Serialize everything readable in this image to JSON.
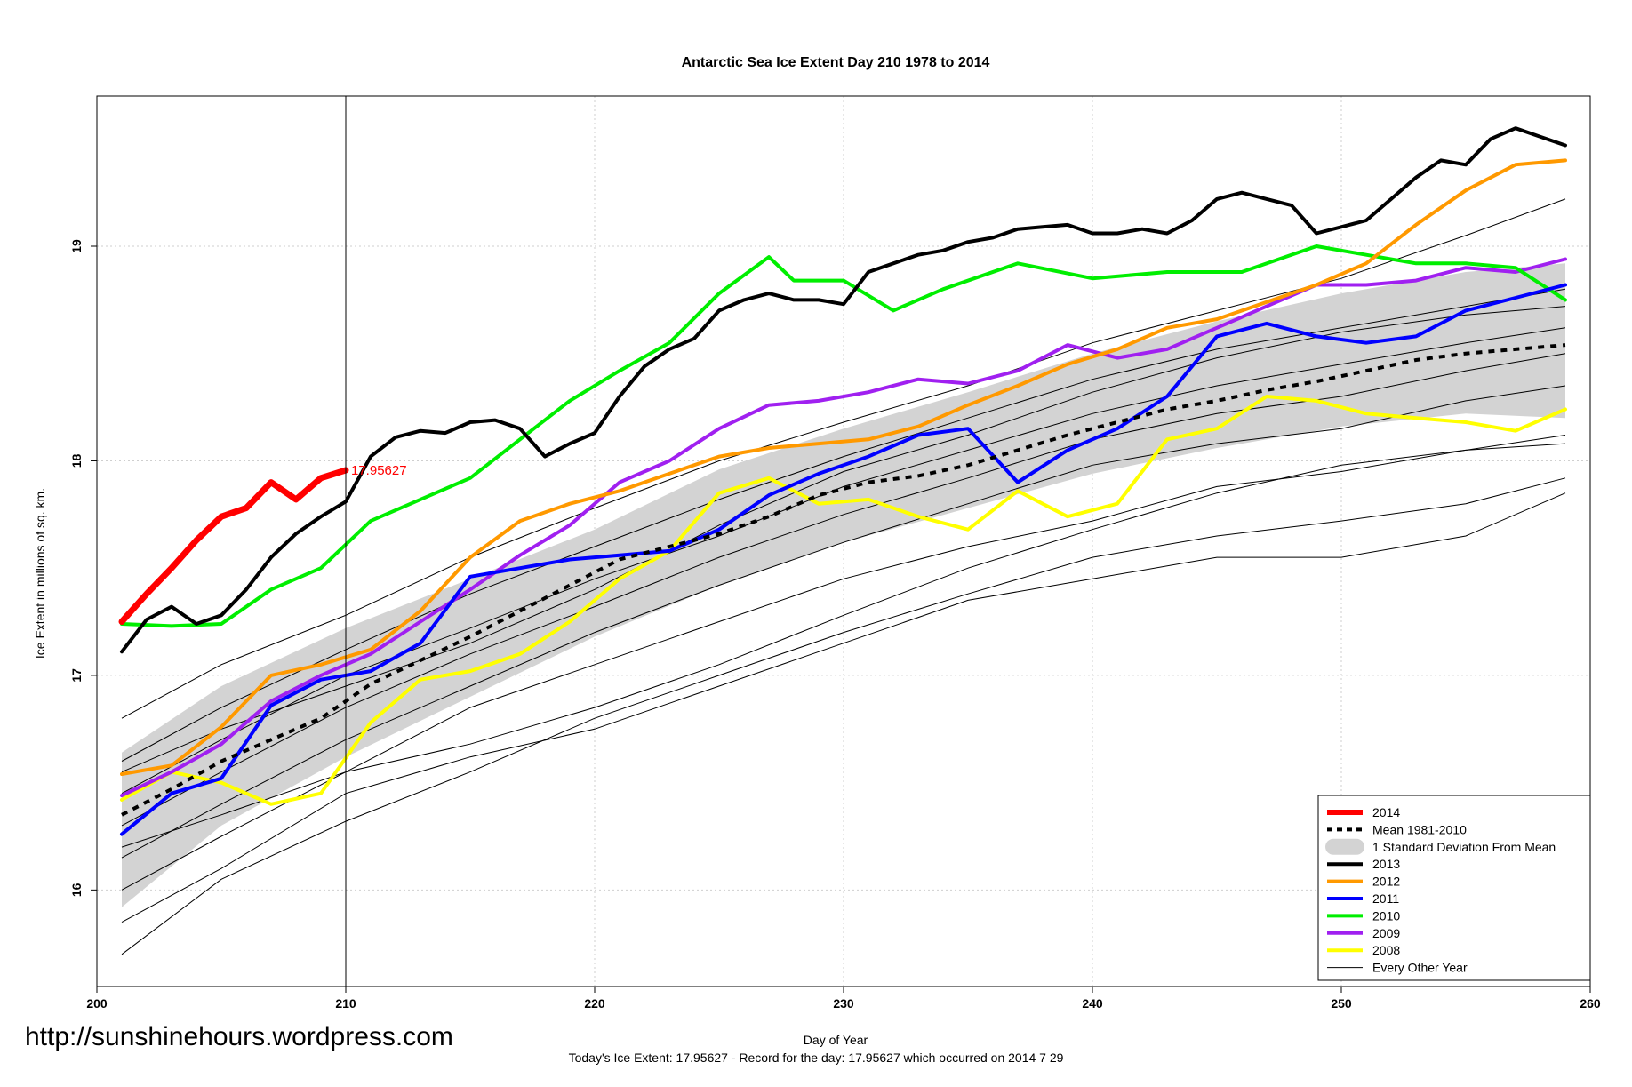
{
  "watermark": "http://sunshinehours.wordpress.com",
  "footnote": "Today's Ice Extent: 17.95627  - Record for the day: 17.95627 which occurred on 2014 7 29",
  "chart_data": {
    "type": "line",
    "title": "Antarctic Sea Ice Extent Day 210 1978 to 2014",
    "xlabel": "Day of Year",
    "ylabel": "Ice Extent in millions of sq. km.",
    "xlim": [
      200,
      260
    ],
    "ylim": [
      15.55,
      19.7
    ],
    "xticks": [
      200,
      210,
      220,
      230,
      240,
      250,
      260
    ],
    "yticks": [
      16,
      17,
      18,
      19
    ],
    "grid": true,
    "current_day": 210,
    "current_value_label": "17.95627",
    "legend_position": "bottom-right",
    "legend": [
      {
        "label": "2014",
        "color": "#ff0000",
        "style": "thick"
      },
      {
        "label": "Mean 1981-2010",
        "color": "#000000",
        "style": "dashed"
      },
      {
        "label": "1 Standard Deviation From Mean",
        "color": "#d3d3d3",
        "style": "band"
      },
      {
        "label": "2013",
        "color": "#000000",
        "style": "line"
      },
      {
        "label": "2012",
        "color": "#ff9900",
        "style": "line"
      },
      {
        "label": "2011",
        "color": "#0000ff",
        "style": "line"
      },
      {
        "label": "2010",
        "color": "#00ee00",
        "style": "line"
      },
      {
        "label": "2009",
        "color": "#a020f0",
        "style": "line"
      },
      {
        "label": "2008",
        "color": "#ffff00",
        "style": "line"
      },
      {
        "label": "Every Other Year",
        "color": "#000000",
        "style": "thin"
      }
    ],
    "sd_band": {
      "x": [
        201,
        205,
        210,
        215,
        220,
        225,
        230,
        235,
        240,
        245,
        250,
        255,
        259
      ],
      "upper": [
        16.64,
        16.95,
        17.22,
        17.45,
        17.68,
        17.96,
        18.15,
        18.32,
        18.5,
        18.65,
        18.78,
        18.88,
        18.92
      ],
      "lower": [
        15.92,
        16.3,
        16.62,
        16.9,
        17.18,
        17.42,
        17.62,
        17.78,
        17.94,
        18.06,
        18.16,
        18.22,
        18.2
      ]
    },
    "mean": {
      "x": [
        201,
        203,
        205,
        207,
        209,
        211,
        213,
        215,
        217,
        219,
        221,
        223,
        225,
        227,
        229,
        231,
        233,
        235,
        237,
        239,
        241,
        243,
        245,
        247,
        249,
        251,
        253,
        255,
        257,
        259
      ],
      "y": [
        16.35,
        16.47,
        16.6,
        16.7,
        16.8,
        16.96,
        17.07,
        17.18,
        17.3,
        17.42,
        17.54,
        17.6,
        17.66,
        17.74,
        17.84,
        17.9,
        17.93,
        17.98,
        18.05,
        18.12,
        18.18,
        18.24,
        18.28,
        18.33,
        18.37,
        18.42,
        18.47,
        18.5,
        18.52,
        18.54
      ]
    },
    "every_other_year": [
      {
        "x": [
          201,
          205,
          210,
          215,
          220,
          225,
          230,
          235,
          240,
          245,
          250,
          255,
          259
        ],
        "y": [
          15.7,
          16.05,
          16.32,
          16.55,
          16.8,
          17.0,
          17.2,
          17.38,
          17.55,
          17.65,
          17.72,
          17.8,
          17.92
        ]
      },
      {
        "x": [
          201,
          205,
          210,
          215,
          220,
          225,
          230,
          235,
          240,
          245,
          250,
          255,
          259
        ],
        "y": [
          15.85,
          16.1,
          16.45,
          16.62,
          16.75,
          16.95,
          17.15,
          17.35,
          17.45,
          17.55,
          17.55,
          17.65,
          17.85
        ]
      },
      {
        "x": [
          201,
          205,
          210,
          215,
          220,
          225,
          230,
          235,
          240,
          245,
          250,
          255,
          259
        ],
        "y": [
          16.0,
          16.25,
          16.55,
          16.85,
          17.05,
          17.25,
          17.45,
          17.6,
          17.72,
          17.88,
          17.95,
          18.05,
          18.12
        ]
      },
      {
        "x": [
          201,
          205,
          210,
          215,
          220,
          225,
          230,
          235,
          240,
          245,
          250,
          255,
          259
        ],
        "y": [
          16.15,
          16.4,
          16.7,
          16.95,
          17.2,
          17.42,
          17.62,
          17.8,
          17.98,
          18.08,
          18.15,
          18.28,
          18.35
        ]
      },
      {
        "x": [
          201,
          205,
          210,
          215,
          220,
          225,
          230,
          235,
          240,
          245,
          250,
          255,
          259
        ],
        "y": [
          16.3,
          16.55,
          16.85,
          17.1,
          17.32,
          17.55,
          17.75,
          17.92,
          18.1,
          18.22,
          18.3,
          18.42,
          18.5
        ]
      },
      {
        "x": [
          201,
          205,
          210,
          215,
          220,
          225,
          230,
          235,
          240,
          245,
          250,
          255,
          259
        ],
        "y": [
          16.45,
          16.7,
          17.0,
          17.22,
          17.45,
          17.65,
          17.88,
          18.05,
          18.22,
          18.35,
          18.45,
          18.55,
          18.62
        ]
      },
      {
        "x": [
          201,
          205,
          210,
          215,
          220,
          225,
          230,
          235,
          240,
          245,
          250,
          255,
          259
        ],
        "y": [
          16.6,
          16.85,
          17.12,
          17.38,
          17.6,
          17.82,
          18.02,
          18.2,
          18.38,
          18.52,
          18.62,
          18.72,
          18.8
        ]
      },
      {
        "x": [
          201,
          205,
          210,
          215,
          220,
          225,
          230,
          235,
          240,
          245,
          250,
          255,
          259
        ],
        "y": [
          16.8,
          17.05,
          17.28,
          17.55,
          17.78,
          18.0,
          18.18,
          18.35,
          18.55,
          18.7,
          18.85,
          19.05,
          19.22
        ]
      },
      {
        "x": [
          201,
          205,
          210,
          215,
          220,
          225,
          230,
          235,
          240,
          245,
          250,
          255,
          259
        ],
        "y": [
          16.2,
          16.35,
          16.55,
          16.68,
          16.85,
          17.05,
          17.28,
          17.5,
          17.68,
          17.85,
          17.98,
          18.05,
          18.08
        ]
      },
      {
        "x": [
          201,
          205,
          210,
          215,
          220,
          225,
          230,
          235,
          240,
          245,
          250,
          255,
          259
        ],
        "y": [
          16.55,
          16.75,
          16.95,
          17.15,
          17.4,
          17.7,
          17.95,
          18.12,
          18.32,
          18.48,
          18.6,
          18.68,
          18.72
        ]
      }
    ],
    "series": [
      {
        "name": "2008",
        "color": "#ffff00",
        "width": 4,
        "x": [
          201,
          203,
          205,
          207,
          209,
          211,
          213,
          215,
          217,
          219,
          221,
          223,
          225,
          227,
          229,
          231,
          233,
          235,
          237,
          239,
          241,
          243,
          245,
          247,
          249,
          251,
          253,
          255,
          257,
          259
        ],
        "y": [
          16.42,
          16.55,
          16.5,
          16.4,
          16.45,
          16.78,
          16.98,
          17.02,
          17.1,
          17.25,
          17.45,
          17.58,
          17.85,
          17.92,
          17.8,
          17.82,
          17.74,
          17.68,
          17.86,
          17.74,
          17.8,
          18.1,
          18.15,
          18.3,
          18.28,
          18.22,
          18.2,
          18.18,
          18.14,
          18.24
        ]
      },
      {
        "name": "2009",
        "color": "#a020f0",
        "width": 4,
        "x": [
          201,
          203,
          205,
          207,
          209,
          211,
          213,
          215,
          217,
          219,
          221,
          223,
          225,
          227,
          229,
          231,
          233,
          235,
          237,
          239,
          241,
          243,
          245,
          247,
          249,
          251,
          253,
          255,
          257,
          259
        ],
        "y": [
          16.44,
          16.55,
          16.68,
          16.88,
          17.0,
          17.1,
          17.25,
          17.4,
          17.56,
          17.7,
          17.9,
          18.0,
          18.15,
          18.26,
          18.28,
          18.32,
          18.38,
          18.36,
          18.42,
          18.54,
          18.48,
          18.52,
          18.62,
          18.72,
          18.82,
          18.82,
          18.84,
          18.9,
          18.88,
          18.94
        ]
      },
      {
        "name": "2010",
        "color": "#00ee00",
        "width": 4,
        "x": [
          201,
          203,
          205,
          207,
          209,
          211,
          213,
          215,
          217,
          219,
          221,
          223,
          225,
          227,
          228,
          230,
          232,
          234,
          237,
          240,
          243,
          246,
          249,
          251,
          253,
          255,
          257,
          259
        ],
        "y": [
          17.24,
          17.23,
          17.24,
          17.4,
          17.5,
          17.72,
          17.82,
          17.92,
          18.1,
          18.28,
          18.42,
          18.55,
          18.78,
          18.95,
          18.84,
          18.84,
          18.7,
          18.8,
          18.92,
          18.85,
          18.88,
          18.88,
          19.0,
          18.96,
          18.92,
          18.92,
          18.9,
          18.75
        ]
      },
      {
        "name": "2011",
        "color": "#0000ff",
        "width": 4,
        "x": [
          201,
          203,
          205,
          207,
          209,
          211,
          213,
          215,
          217,
          219,
          221,
          223,
          225,
          227,
          229,
          231,
          233,
          235,
          237,
          239,
          241,
          243,
          245,
          247,
          249,
          251,
          253,
          255,
          257,
          259
        ],
        "y": [
          16.26,
          16.45,
          16.52,
          16.86,
          16.98,
          17.02,
          17.15,
          17.46,
          17.5,
          17.54,
          17.56,
          17.58,
          17.68,
          17.84,
          17.94,
          18.02,
          18.12,
          18.15,
          17.9,
          18.05,
          18.15,
          18.3,
          18.58,
          18.64,
          18.58,
          18.55,
          18.58,
          18.7,
          18.76,
          18.82
        ]
      },
      {
        "name": "2012",
        "color": "#ff9900",
        "width": 4,
        "x": [
          201,
          203,
          205,
          207,
          209,
          211,
          213,
          215,
          217,
          219,
          221,
          223,
          225,
          227,
          229,
          231,
          233,
          235,
          237,
          239,
          241,
          243,
          245,
          247,
          249,
          251,
          253,
          255,
          257,
          259
        ],
        "y": [
          16.54,
          16.58,
          16.76,
          17.0,
          17.05,
          17.12,
          17.3,
          17.55,
          17.72,
          17.8,
          17.86,
          17.94,
          18.02,
          18.06,
          18.08,
          18.1,
          18.16,
          18.26,
          18.35,
          18.45,
          18.52,
          18.62,
          18.66,
          18.74,
          18.82,
          18.92,
          19.1,
          19.26,
          19.38,
          19.4
        ]
      },
      {
        "name": "2013",
        "color": "#000000",
        "width": 4,
        "x": [
          201,
          202,
          203,
          204,
          205,
          206,
          207,
          208,
          209,
          210,
          211,
          212,
          213,
          214,
          215,
          216,
          217,
          218,
          219,
          220,
          221,
          222,
          223,
          224,
          225,
          226,
          227,
          228,
          229,
          230,
          231,
          232,
          233,
          234,
          235,
          236,
          237,
          238,
          239,
          240,
          241,
          242,
          243,
          244,
          245,
          246,
          247,
          248,
          249,
          250,
          251,
          252,
          253,
          254,
          255,
          256,
          257,
          258,
          259
        ],
        "y": [
          17.11,
          17.26,
          17.32,
          17.24,
          17.28,
          17.4,
          17.55,
          17.66,
          17.74,
          17.81,
          18.02,
          18.11,
          18.14,
          18.13,
          18.18,
          18.19,
          18.15,
          18.02,
          18.08,
          18.13,
          18.3,
          18.44,
          18.52,
          18.57,
          18.7,
          18.75,
          18.78,
          18.75,
          18.75,
          18.73,
          18.88,
          18.92,
          18.96,
          18.98,
          19.02,
          19.04,
          19.08,
          19.09,
          19.1,
          19.06,
          19.06,
          19.08,
          19.06,
          19.12,
          19.22,
          19.25,
          19.22,
          19.19,
          19.06,
          19.09,
          19.12,
          19.22,
          19.32,
          19.4,
          19.38,
          19.5,
          19.55,
          19.51,
          19.47
        ]
      },
      {
        "name": "2014",
        "color": "#ff0000",
        "width": 7,
        "x": [
          201,
          202,
          203,
          204,
          205,
          206,
          207,
          208,
          209,
          210
        ],
        "y": [
          17.25,
          17.38,
          17.5,
          17.63,
          17.74,
          17.78,
          17.9,
          17.82,
          17.92,
          17.95627
        ]
      }
    ]
  }
}
